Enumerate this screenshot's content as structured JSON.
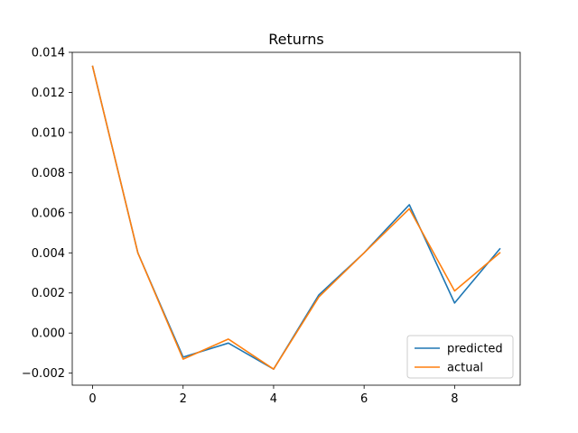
{
  "chart_data": {
    "type": "line",
    "title": "Returns",
    "xlabel": "",
    "ylabel": "",
    "x": [
      0,
      1,
      2,
      3,
      4,
      5,
      6,
      7,
      8,
      9
    ],
    "xlim": [
      -0.45,
      9.45
    ],
    "ylim": [
      -0.0026,
      0.014
    ],
    "xticks": [
      0,
      2,
      4,
      6,
      8
    ],
    "xtick_labels": [
      "0",
      "2",
      "4",
      "6",
      "8"
    ],
    "yticks": [
      -0.002,
      0.0,
      0.002,
      0.004,
      0.006,
      0.008,
      0.01,
      0.012,
      0.014
    ],
    "ytick_labels": [
      "−0.002",
      "0.000",
      "0.002",
      "0.004",
      "0.006",
      "0.008",
      "0.010",
      "0.012",
      "0.014"
    ],
    "grid": false,
    "legend_position": "bottom-right",
    "series": [
      {
        "name": "predicted",
        "color": "#1f77b4",
        "values": [
          0.0133,
          0.004,
          -0.0012,
          -0.0005,
          -0.0018,
          0.0019,
          0.004,
          0.0064,
          0.0015,
          0.0042
        ]
      },
      {
        "name": "actual",
        "color": "#ff7f0e",
        "values": [
          0.0133,
          0.004,
          -0.0013,
          -0.0003,
          -0.0018,
          0.0018,
          0.004,
          0.0062,
          0.0021,
          0.004
        ]
      }
    ]
  }
}
